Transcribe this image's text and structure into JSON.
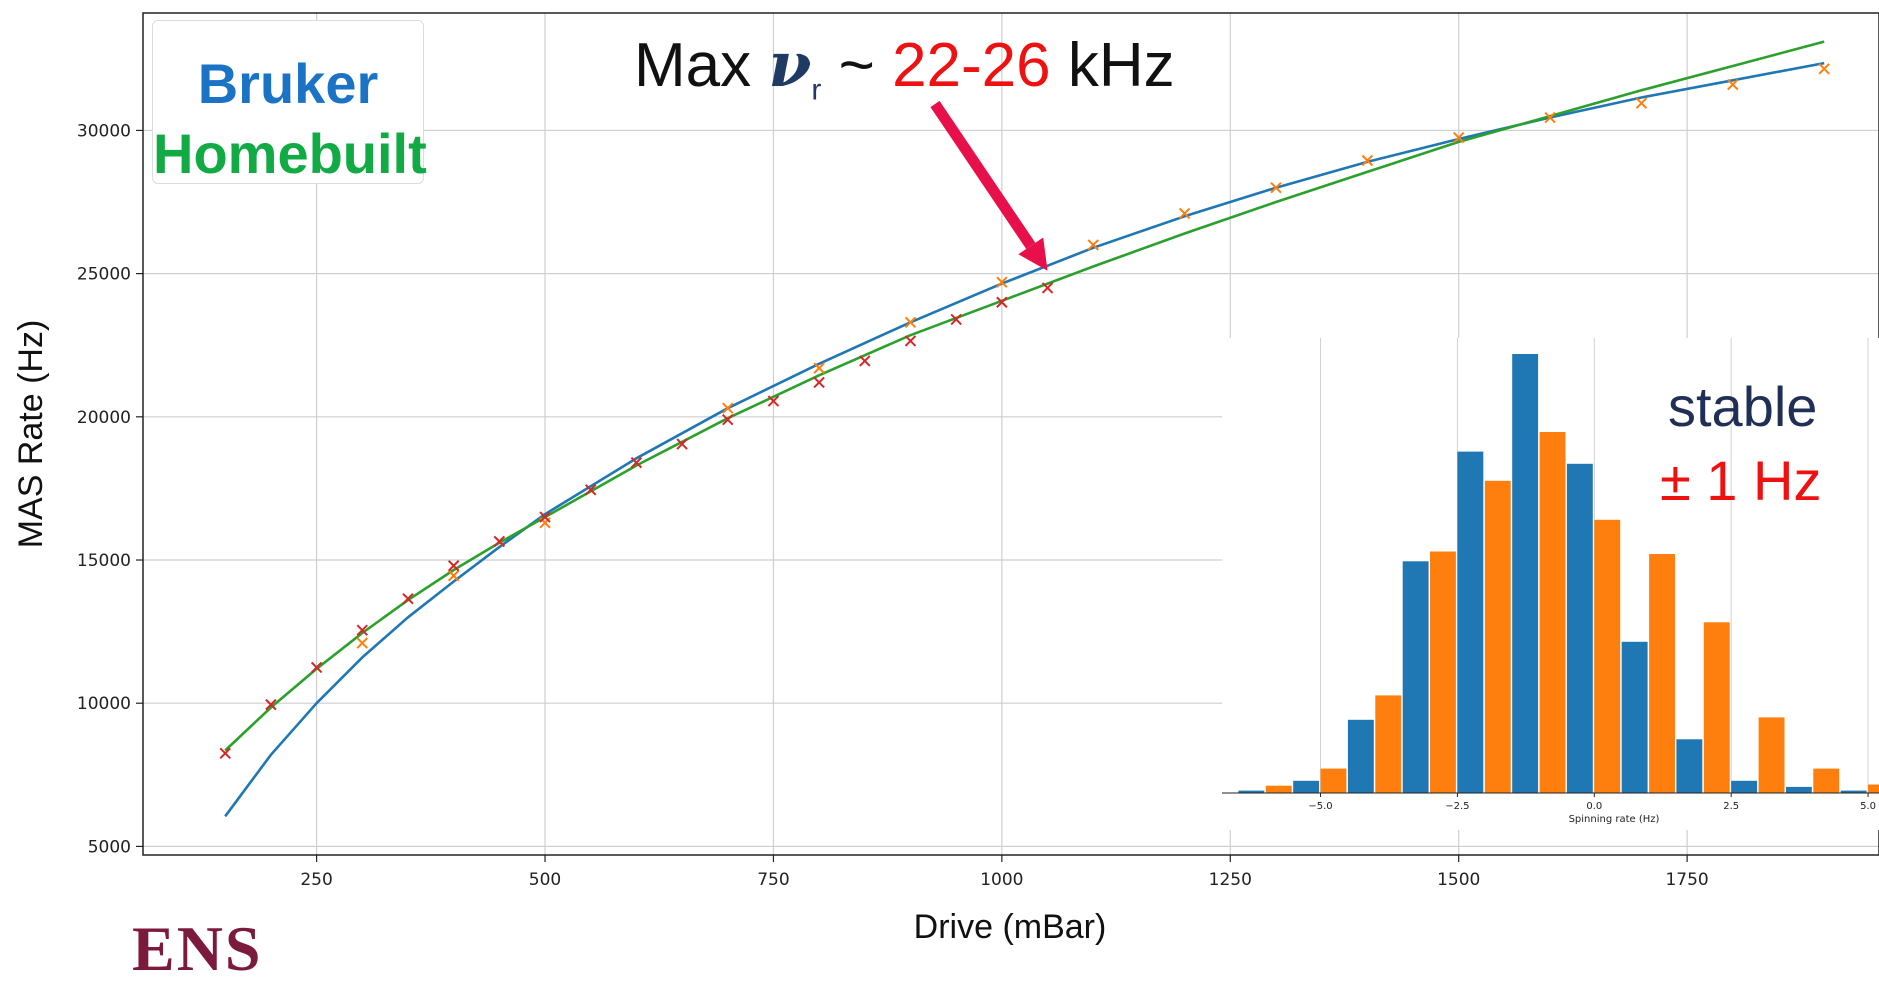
{
  "chart_data": [
    {
      "type": "scatter",
      "xlabel": "Drive (mBar)",
      "ylabel": "MAS Rate (Hz)",
      "xlim": [
        60,
        1960
      ],
      "ylim": [
        4700,
        34100
      ],
      "x_ticks": [
        250,
        500,
        750,
        1000,
        1250,
        1500,
        1750
      ],
      "y_ticks": [
        5000,
        10000,
        15000,
        20000,
        25000,
        30000
      ],
      "grid": true,
      "series": [
        {
          "name": "Bruker",
          "color": "#ff7f0e",
          "marker": "x",
          "points": [
            [
              300,
              12100
            ],
            [
              400,
              14450
            ],
            [
              450,
              15650
            ],
            [
              500,
              16300
            ],
            [
              700,
              20300
            ],
            [
              800,
              21700
            ],
            [
              900,
              23300
            ],
            [
              1000,
              24700
            ],
            [
              1100,
              26000
            ],
            [
              1200,
              27100
            ],
            [
              1300,
              28000
            ],
            [
              1400,
              28950
            ],
            [
              1500,
              29750
            ],
            [
              1600,
              30450
            ],
            [
              1700,
              30950
            ],
            [
              1800,
              31600
            ],
            [
              1900,
              32150
            ]
          ]
        },
        {
          "name": "Homebuilt",
          "color": "#d62728",
          "marker": "x",
          "points": [
            [
              150,
              8250
            ],
            [
              200,
              9950
            ],
            [
              250,
              11250
            ],
            [
              300,
              12550
            ],
            [
              350,
              13650
            ],
            [
              400,
              14800
            ],
            [
              450,
              15650
            ],
            [
              500,
              16500
            ],
            [
              550,
              17450
            ],
            [
              600,
              18400
            ],
            [
              650,
              19050
            ],
            [
              700,
              19900
            ],
            [
              750,
              20550
            ],
            [
              800,
              21200
            ],
            [
              850,
              21950
            ],
            [
              900,
              22650
            ],
            [
              950,
              23400
            ],
            [
              1000,
              24000
            ],
            [
              1050,
              24500
            ]
          ]
        },
        {
          "name": "Bruker fit",
          "color": "#1f77b4",
          "line": true,
          "points": [
            [
              150,
              6050
            ],
            [
              200,
              8200
            ],
            [
              250,
              10000
            ],
            [
              300,
              11600
            ],
            [
              350,
              13000
            ],
            [
              400,
              14250
            ],
            [
              450,
              15450
            ],
            [
              500,
              16600
            ],
            [
              600,
              18550
            ],
            [
              700,
              20300
            ],
            [
              800,
              21850
            ],
            [
              900,
              23300
            ],
            [
              1000,
              24650
            ],
            [
              1100,
              25900
            ],
            [
              1200,
              27000
            ],
            [
              1300,
              28000
            ],
            [
              1400,
              28900
            ],
            [
              1500,
              29700
            ],
            [
              1600,
              30450
            ],
            [
              1700,
              31150
            ],
            [
              1800,
              31750
            ],
            [
              1900,
              32350
            ]
          ]
        },
        {
          "name": "Homebuilt fit",
          "color": "#2ca02c",
          "line": true,
          "points": [
            [
              150,
              8350
            ],
            [
              200,
              9850
            ],
            [
              250,
              11200
            ],
            [
              300,
              12450
            ],
            [
              350,
              13600
            ],
            [
              400,
              14650
            ],
            [
              450,
              15600
            ],
            [
              500,
              16500
            ],
            [
              600,
              18300
            ],
            [
              700,
              19950
            ],
            [
              800,
              21450
            ],
            [
              900,
              22850
            ],
            [
              1000,
              24050
            ],
            [
              1100,
              25250
            ],
            [
              1200,
              26400
            ],
            [
              1300,
              27500
            ],
            [
              1400,
              28550
            ],
            [
              1500,
              29600
            ],
            [
              1600,
              30500
            ],
            [
              1700,
              31400
            ],
            [
              1800,
              32250
            ],
            [
              1900,
              33100
            ]
          ]
        }
      ]
    },
    {
      "type": "bar",
      "xlabel": "Spinning rate (Hz)",
      "xlim": [
        -6.8,
        5.2
      ],
      "x_ticks": [
        -5.0,
        -2.5,
        0.0,
        2.5,
        5.0
      ],
      "x_tick_labels": [
        "−5.0",
        "−2.5",
        "0.0",
        "2.5",
        "5.0"
      ],
      "bin_width": 1.0,
      "bin_centers": [
        -6,
        -5,
        -4,
        -3,
        -2,
        -1,
        0,
        1,
        2,
        3,
        4,
        5
      ],
      "grid": true,
      "series": [
        {
          "color": "#1f77b4",
          "values": [
            0.1,
            0.5,
            3.0,
            9.5,
            14.0,
            18.0,
            13.5,
            6.2,
            2.2,
            0.5,
            0.25,
            0.1
          ]
        },
        {
          "color": "#ff7f0e",
          "values": [
            0.3,
            1.0,
            4.0,
            9.9,
            12.8,
            14.8,
            11.2,
            9.8,
            7.0,
            3.1,
            1.0,
            0.35
          ]
        }
      ]
    }
  ],
  "legend": {
    "bruker_label": "Bruker",
    "bruker_color": "#1a73c4",
    "homebuilt_label": "Homebuilt",
    "homebuilt_color": "#11aa44"
  },
  "annotation": {
    "prefix": "Max ",
    "symbol": "ν",
    "subscript": "r",
    "tilde": " ~ ",
    "range": "22-26",
    "range_color": "#ee1111",
    "unit": " kHz",
    "arrow_color": "#e8104a",
    "arrow_target": [
      1050,
      25100
    ]
  },
  "stability": {
    "label": "stable",
    "value": "± 1 Hz"
  },
  "logo_text": "ENS"
}
